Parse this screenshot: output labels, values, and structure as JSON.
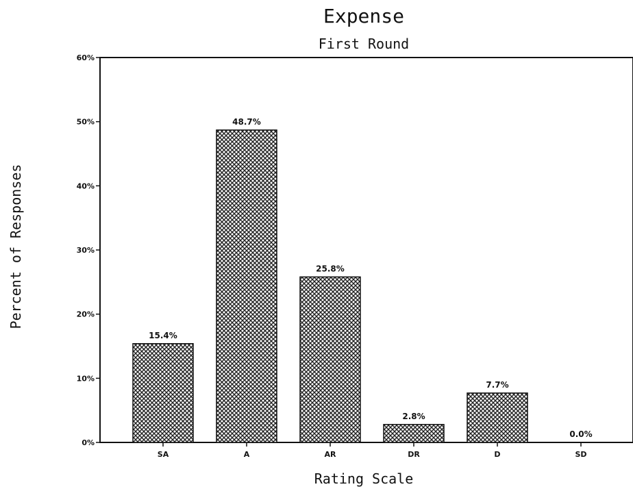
{
  "chart_data": {
    "type": "bar",
    "title": "Expense",
    "subtitle": "First Round",
    "xlabel": "Rating Scale",
    "ylabel": "Percent of Responses",
    "categories": [
      "SA",
      "A",
      "AR",
      "DR",
      "D",
      "SD"
    ],
    "values": [
      15.4,
      48.7,
      25.8,
      2.8,
      7.7,
      0.0
    ],
    "data_labels": [
      "15.4%",
      "48.7%",
      "25.8%",
      "2.8%",
      "7.7%",
      "0.0%"
    ],
    "ylim": [
      0,
      60
    ],
    "yticks": [
      0,
      10,
      20,
      30,
      40,
      50,
      60
    ],
    "ytick_labels": [
      "0%",
      "10%",
      "20%",
      "30%",
      "40%",
      "50%",
      "60%"
    ],
    "grid": false,
    "bar_fill": "crosshatch",
    "colors": {
      "bar": "#222222",
      "background": "#ffffff"
    }
  }
}
